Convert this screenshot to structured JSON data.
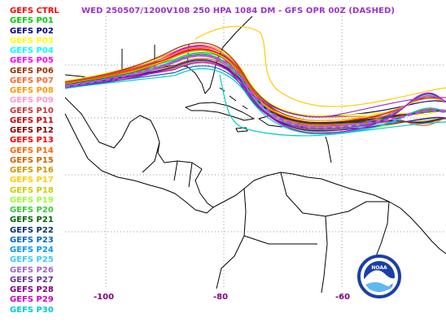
{
  "title": "WED 250507/1200V108  250 HPA 1084 DM - GFS OPR 00Z (DASHED)",
  "title_color": "#9933cc",
  "legend": [
    {
      "label": "GEFS CTRL",
      "color": "#ff0000"
    },
    {
      "label": "GEFS P01",
      "color": "#00cc00"
    },
    {
      "label": "GEFS P02",
      "color": "#000080"
    },
    {
      "label": "GEFS P03",
      "color": "#ffff00"
    },
    {
      "label": "GEFS P04",
      "color": "#00ffff"
    },
    {
      "label": "GEFS P05",
      "color": "#ff00ff"
    },
    {
      "label": "GEFS P06",
      "color": "#993300"
    },
    {
      "label": "GEFS P07",
      "color": "#ff6633"
    },
    {
      "label": "GEFS P08",
      "color": "#ff9900"
    },
    {
      "label": "GEFS P09",
      "color": "#ff99cc"
    },
    {
      "label": "GEFS P10",
      "color": "#cc3333"
    },
    {
      "label": "GEFS P11",
      "color": "#cc0000"
    },
    {
      "label": "GEFS P12",
      "color": "#800000"
    },
    {
      "label": "GEFS P13",
      "color": "#ff0000"
    },
    {
      "label": "GEFS P14",
      "color": "#ff6600"
    },
    {
      "label": "GEFS P15",
      "color": "#cc6600"
    },
    {
      "label": "GEFS P16",
      "color": "#cc9900"
    },
    {
      "label": "GEFS P17",
      "color": "#ffcc00"
    },
    {
      "label": "GEFS P18",
      "color": "#cccc00"
    },
    {
      "label": "GEFS P19",
      "color": "#99ff33"
    },
    {
      "label": "GEFS P20",
      "color": "#33cc33"
    },
    {
      "label": "GEFS P21",
      "color": "#006600"
    },
    {
      "label": "GEFS P22",
      "color": "#003366"
    },
    {
      "label": "GEFS P23",
      "color": "#0066cc"
    },
    {
      "label": "GEFS P24",
      "color": "#0099ff"
    },
    {
      "label": "GEFS P25",
      "color": "#33ccff"
    },
    {
      "label": "GEFS P26",
      "color": "#9966cc"
    },
    {
      "label": "GEFS P27",
      "color": "#663399"
    },
    {
      "label": "GEFS P28",
      "color": "#800080"
    },
    {
      "label": "GEFS P29",
      "color": "#cc00cc"
    },
    {
      "label": "GEFS P30",
      "color": "#00cccc"
    }
  ],
  "lon_labels": [
    "-100",
    "-80",
    "-60"
  ],
  "axis_label_color": "#800080",
  "logo": {
    "text": "NOAA",
    "colors": [
      "#1a3fa8",
      "#5fb8f0"
    ]
  },
  "opr_color": "#b84cf0"
}
